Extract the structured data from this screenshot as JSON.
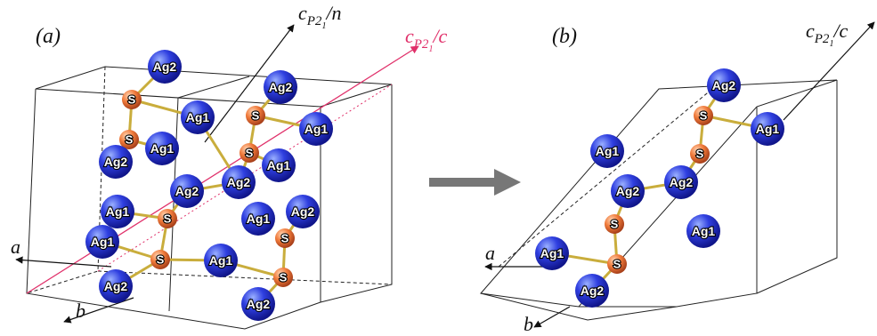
{
  "panels": [
    {
      "label": "(a)",
      "axes": [
        {
          "symbol": "c",
          "subscript": "P2",
          "subsubscript": "1",
          "suffix": "/n"
        },
        {
          "symbol": "c",
          "subscript": "P2",
          "subsubscript": "1",
          "suffix": "/c"
        },
        {
          "symbol": "a"
        },
        {
          "symbol": "b"
        }
      ],
      "atoms": [
        "Ag2",
        "Ag2",
        "S",
        "Ag1",
        "S",
        "Ag1",
        "S",
        "Ag1",
        "Ag2",
        "S",
        "Ag1",
        "Ag2",
        "Ag2",
        "Ag1",
        "S",
        "Ag1",
        "Ag2",
        "Ag1",
        "S",
        "S",
        "Ag1",
        "Ag2",
        "S",
        "Ag2"
      ]
    },
    {
      "label": "(b)",
      "axes": [
        {
          "symbol": "c",
          "subscript": "P2",
          "subsubscript": "1",
          "suffix": "/c"
        },
        {
          "symbol": "a"
        },
        {
          "symbol": "b"
        }
      ],
      "atoms": [
        "Ag2",
        "S",
        "Ag1",
        "Ag1",
        "S",
        "Ag2",
        "Ag2",
        "S",
        "Ag1",
        "Ag1",
        "S",
        "Ag2"
      ]
    }
  ]
}
